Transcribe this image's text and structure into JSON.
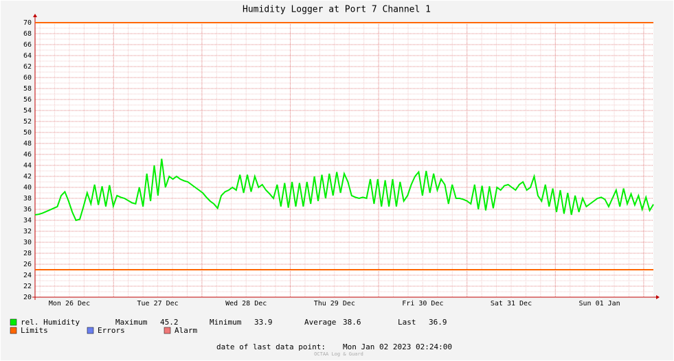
{
  "chart_data": {
    "type": "line",
    "title": "Humidity Logger at Port 7 Channel 1",
    "x_labels": [
      "Mon 26 Dec",
      "Tue 27 Dec",
      "Wed 28 Dec",
      "Thu 29 Dec",
      "Fri 30 Dec",
      "Sat 31 Dec",
      "Sun 01 Jan"
    ],
    "ylim": [
      20,
      70
    ],
    "yticks": [
      20,
      22,
      24,
      26,
      28,
      30,
      32,
      34,
      36,
      38,
      40,
      42,
      44,
      46,
      48,
      50,
      52,
      54,
      56,
      58,
      60,
      62,
      64,
      66,
      68,
      70
    ],
    "grid": true,
    "series": [
      {
        "name": "rel. Humidity",
        "color": "#00ee00",
        "values": [
          35.0,
          35.1,
          35.3,
          35.6,
          35.9,
          36.2,
          36.5,
          38.5,
          39.2,
          37.5,
          35.5,
          34.0,
          34.2,
          36.5,
          39.0,
          37,
          40.5,
          36.8,
          40.2,
          36.5,
          40.4,
          36.6,
          38.5,
          38.2,
          38.0,
          37.6,
          37.2,
          37.0,
          40,
          36.5,
          42.5,
          37.5,
          44,
          38.5,
          45.2,
          40,
          42,
          41.5,
          42,
          41.5,
          41.2,
          41,
          40.5,
          40,
          39.5,
          39,
          38.2,
          37.5,
          37,
          36.2,
          38.5,
          39.2,
          39.5,
          40,
          39.5,
          42.3,
          39,
          42.3,
          39.2,
          42,
          40,
          40.5,
          39.5,
          38.8,
          38,
          40.5,
          36.5,
          40.8,
          36.3,
          41,
          36.5,
          40.8,
          36.5,
          41,
          37,
          42,
          37.5,
          42.3,
          38,
          42.5,
          38.5,
          42.8,
          39,
          42.5,
          41,
          38.5,
          38.2,
          38,
          38.2,
          38,
          41.5,
          37,
          41.5,
          36.5,
          41.3,
          36.5,
          41.5,
          36.5,
          41,
          37.5,
          38.5,
          40.5,
          42,
          42.8,
          38.5,
          43,
          39,
          42.5,
          39.5,
          41.5,
          40.5,
          37,
          40.5,
          38,
          38,
          37.8,
          37.5,
          37,
          40.5,
          36,
          40.3,
          35.8,
          40.2,
          36.2,
          40,
          39.5,
          40.3,
          40.5,
          40,
          39.5,
          40.5,
          41,
          39.5,
          40,
          42,
          38.5,
          37.5,
          40.5,
          36.5,
          39.8,
          35.5,
          39.5,
          35.2,
          39,
          35,
          38.5,
          35.5,
          38,
          36.5,
          37,
          37.5,
          38,
          38.2,
          37.8,
          36.5,
          38,
          39.5,
          36.5,
          39.8,
          37,
          38.8,
          36.8,
          38.5,
          36,
          38.2,
          35.8,
          36.9
        ]
      }
    ],
    "limits": {
      "name": "Limits",
      "color": "#ff6600",
      "values": [
        70,
        25
      ]
    },
    "stats": [
      {
        "label": "Maximum",
        "value": 45.2
      },
      {
        "label": "Minimum",
        "value": 33.9
      },
      {
        "label": "Average",
        "value": 38.6
      },
      {
        "label": "Last",
        "value": 36.9
      }
    ],
    "legend_extra": [
      {
        "name": "Errors",
        "color": "#6a7fef"
      },
      {
        "name": "Alarm",
        "color": "#f07878"
      }
    ],
    "footer_label": "date of last data point:",
    "footer_value": "Mon Jan 02 2023 02:24:00",
    "watermark": "OCTAA Log & Guard"
  }
}
